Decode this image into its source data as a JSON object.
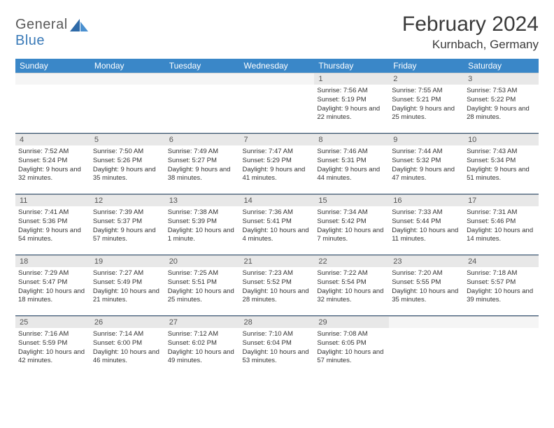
{
  "brand": {
    "name_a": "General",
    "name_b": "Blue"
  },
  "title": "February 2024",
  "location": "Kurnbach, Germany",
  "colors": {
    "header_bg": "#3a87c8",
    "daynum_bg": "#e8e8e8",
    "week_sep": "#2a4a6a",
    "text": "#333333",
    "title_text": "#3a3a3a",
    "logo_gray": "#5a5a5a",
    "logo_blue": "#3a7ab8"
  },
  "dow": [
    "Sunday",
    "Monday",
    "Tuesday",
    "Wednesday",
    "Thursday",
    "Friday",
    "Saturday"
  ],
  "weeks": [
    [
      null,
      null,
      null,
      null,
      {
        "n": "1",
        "sr": "7:56 AM",
        "ss": "5:19 PM",
        "dl": "9 hours and 22 minutes."
      },
      {
        "n": "2",
        "sr": "7:55 AM",
        "ss": "5:21 PM",
        "dl": "9 hours and 25 minutes."
      },
      {
        "n": "3",
        "sr": "7:53 AM",
        "ss": "5:22 PM",
        "dl": "9 hours and 28 minutes."
      }
    ],
    [
      {
        "n": "4",
        "sr": "7:52 AM",
        "ss": "5:24 PM",
        "dl": "9 hours and 32 minutes."
      },
      {
        "n": "5",
        "sr": "7:50 AM",
        "ss": "5:26 PM",
        "dl": "9 hours and 35 minutes."
      },
      {
        "n": "6",
        "sr": "7:49 AM",
        "ss": "5:27 PM",
        "dl": "9 hours and 38 minutes."
      },
      {
        "n": "7",
        "sr": "7:47 AM",
        "ss": "5:29 PM",
        "dl": "9 hours and 41 minutes."
      },
      {
        "n": "8",
        "sr": "7:46 AM",
        "ss": "5:31 PM",
        "dl": "9 hours and 44 minutes."
      },
      {
        "n": "9",
        "sr": "7:44 AM",
        "ss": "5:32 PM",
        "dl": "9 hours and 47 minutes."
      },
      {
        "n": "10",
        "sr": "7:43 AM",
        "ss": "5:34 PM",
        "dl": "9 hours and 51 minutes."
      }
    ],
    [
      {
        "n": "11",
        "sr": "7:41 AM",
        "ss": "5:36 PM",
        "dl": "9 hours and 54 minutes."
      },
      {
        "n": "12",
        "sr": "7:39 AM",
        "ss": "5:37 PM",
        "dl": "9 hours and 57 minutes."
      },
      {
        "n": "13",
        "sr": "7:38 AM",
        "ss": "5:39 PM",
        "dl": "10 hours and 1 minute."
      },
      {
        "n": "14",
        "sr": "7:36 AM",
        "ss": "5:41 PM",
        "dl": "10 hours and 4 minutes."
      },
      {
        "n": "15",
        "sr": "7:34 AM",
        "ss": "5:42 PM",
        "dl": "10 hours and 7 minutes."
      },
      {
        "n": "16",
        "sr": "7:33 AM",
        "ss": "5:44 PM",
        "dl": "10 hours and 11 minutes."
      },
      {
        "n": "17",
        "sr": "7:31 AM",
        "ss": "5:46 PM",
        "dl": "10 hours and 14 minutes."
      }
    ],
    [
      {
        "n": "18",
        "sr": "7:29 AM",
        "ss": "5:47 PM",
        "dl": "10 hours and 18 minutes."
      },
      {
        "n": "19",
        "sr": "7:27 AM",
        "ss": "5:49 PM",
        "dl": "10 hours and 21 minutes."
      },
      {
        "n": "20",
        "sr": "7:25 AM",
        "ss": "5:51 PM",
        "dl": "10 hours and 25 minutes."
      },
      {
        "n": "21",
        "sr": "7:23 AM",
        "ss": "5:52 PM",
        "dl": "10 hours and 28 minutes."
      },
      {
        "n": "22",
        "sr": "7:22 AM",
        "ss": "5:54 PM",
        "dl": "10 hours and 32 minutes."
      },
      {
        "n": "23",
        "sr": "7:20 AM",
        "ss": "5:55 PM",
        "dl": "10 hours and 35 minutes."
      },
      {
        "n": "24",
        "sr": "7:18 AM",
        "ss": "5:57 PM",
        "dl": "10 hours and 39 minutes."
      }
    ],
    [
      {
        "n": "25",
        "sr": "7:16 AM",
        "ss": "5:59 PM",
        "dl": "10 hours and 42 minutes."
      },
      {
        "n": "26",
        "sr": "7:14 AM",
        "ss": "6:00 PM",
        "dl": "10 hours and 46 minutes."
      },
      {
        "n": "27",
        "sr": "7:12 AM",
        "ss": "6:02 PM",
        "dl": "10 hours and 49 minutes."
      },
      {
        "n": "28",
        "sr": "7:10 AM",
        "ss": "6:04 PM",
        "dl": "10 hours and 53 minutes."
      },
      {
        "n": "29",
        "sr": "7:08 AM",
        "ss": "6:05 PM",
        "dl": "10 hours and 57 minutes."
      },
      null,
      null
    ]
  ],
  "labels": {
    "sunrise": "Sunrise:",
    "sunset": "Sunset:",
    "daylight": "Daylight:"
  }
}
